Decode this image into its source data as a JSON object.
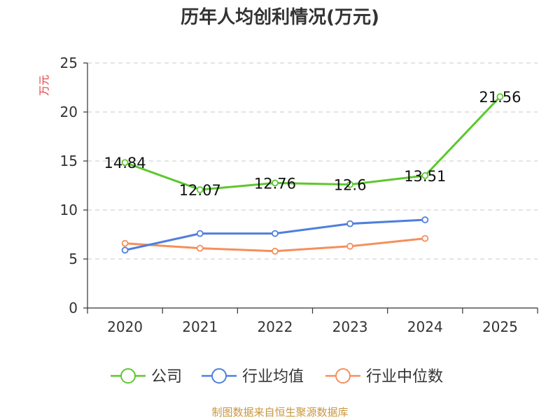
{
  "title": "历年人均创利情况(万元)",
  "source": "制图数据来自恒生聚源数据库",
  "chart_data": {
    "type": "line",
    "title": "历年人均创利情况(万元)",
    "ylabel": "万元",
    "xlabel": "",
    "categories": [
      "2020",
      "2021",
      "2022",
      "2023",
      "2024",
      "2025"
    ],
    "ylim": [
      0,
      25
    ],
    "yticks": [
      "0",
      "5",
      "10",
      "15",
      "20",
      "25"
    ],
    "grid": true,
    "legend_position": "bottom",
    "series": [
      {
        "name": "公司",
        "color": "#5cc82e",
        "values": [
          14.84,
          12.07,
          12.76,
          12.6,
          13.51,
          21.56
        ],
        "labels": [
          "14.84",
          "12.07",
          "12.76",
          "12.6",
          "13.51",
          "21.56"
        ]
      },
      {
        "name": "行业均值",
        "color": "#4f7fdc",
        "values": [
          5.9,
          7.6,
          7.6,
          8.6,
          9.0,
          null
        ],
        "labels": []
      },
      {
        "name": "行业中位数",
        "color": "#f58f5c",
        "values": [
          6.6,
          6.1,
          5.8,
          6.3,
          7.1,
          null
        ],
        "labels": []
      }
    ]
  }
}
